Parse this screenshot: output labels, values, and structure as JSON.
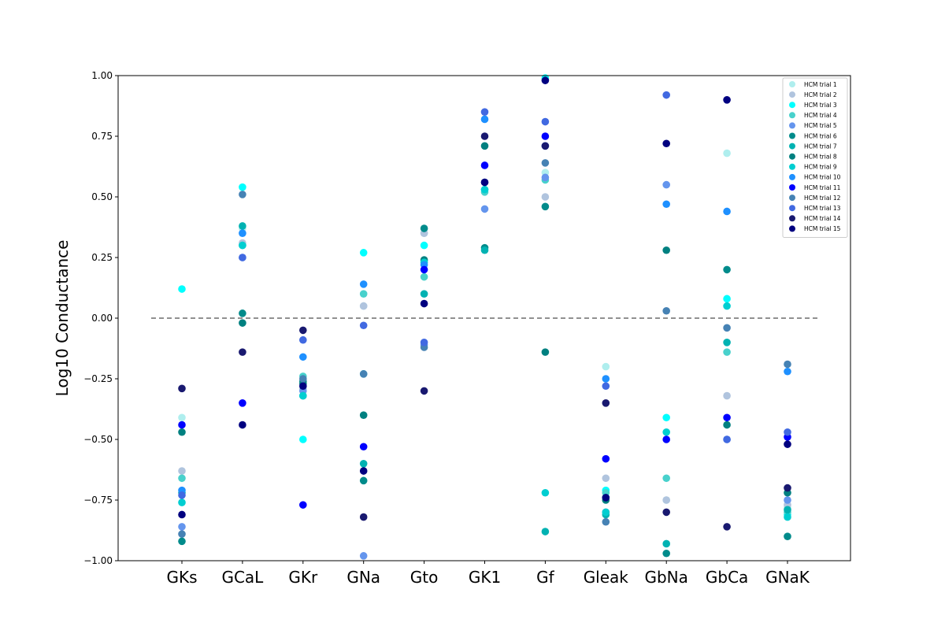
{
  "chart_data": {
    "type": "scatter",
    "title": "",
    "xlabel": "",
    "ylabel": "Log10 Conductance",
    "ylim": [
      -1.0,
      1.0
    ],
    "yticks": [
      -1.0,
      -0.75,
      -0.5,
      -0.25,
      0.0,
      0.25,
      0.5,
      0.75,
      1.0
    ],
    "ytick_labels": [
      "−1.00",
      "−0.75",
      "−0.50",
      "−0.25",
      "0.00",
      "0.25",
      "0.50",
      "0.75",
      "1.00"
    ],
    "categories": [
      "GKs",
      "GCaL",
      "GKr",
      "GNa",
      "Gto",
      "GK1",
      "Gf",
      "Gleak",
      "GbNa",
      "GbCa",
      "GNaK"
    ],
    "reference_line": {
      "y": 0.0,
      "style": "dashed",
      "color": "#808080"
    },
    "legend_position": "top-right",
    "grid": false,
    "series": [
      {
        "name": "HCM trial 1",
        "color": "#AFEEEE",
        "values": [
          -0.41,
          0.37,
          -0.3,
          0.05,
          0.35,
          0.53,
          0.6,
          -0.2,
          -0.75,
          0.68,
          -0.78
        ]
      },
      {
        "name": "HCM trial 2",
        "color": "#B0C4DE",
        "values": [
          -0.63,
          0.31,
          -0.29,
          0.05,
          0.35,
          0.56,
          0.5,
          -0.66,
          -0.75,
          -0.32,
          -0.77
        ]
      },
      {
        "name": "HCM trial 3",
        "color": "#00FFFF",
        "values": [
          0.12,
          0.54,
          -0.5,
          0.27,
          0.3,
          0.53,
          0.99,
          -0.71,
          -0.41,
          0.08,
          -0.81
        ]
      },
      {
        "name": "HCM trial 4",
        "color": "#48D1CC",
        "values": [
          -0.66,
          0.3,
          -0.24,
          0.1,
          0.17,
          0.52,
          0.57,
          -0.72,
          -0.66,
          -0.14,
          -0.8
        ]
      },
      {
        "name": "HCM trial 5",
        "color": "#6495ED",
        "values": [
          -0.86,
          0.25,
          -0.3,
          -0.98,
          -0.11,
          0.45,
          0.58,
          -0.8,
          0.55,
          -0.5,
          -0.75
        ]
      },
      {
        "name": "HCM trial 6",
        "color": "#008B8B",
        "values": [
          -0.92,
          0.02,
          -0.26,
          -0.67,
          0.37,
          0.29,
          0.46,
          -0.74,
          -0.97,
          0.2,
          -0.9
        ]
      },
      {
        "name": "HCM trial 7",
        "color": "#00B2B2",
        "values": [
          -0.72,
          0.38,
          -0.32,
          -0.6,
          0.1,
          0.28,
          -0.88,
          -0.81,
          -0.93,
          -0.1,
          -0.79
        ]
      },
      {
        "name": "HCM trial 8",
        "color": "#008080",
        "values": [
          -0.47,
          -0.02,
          -0.27,
          -0.4,
          0.24,
          0.71,
          -0.14,
          -0.75,
          0.28,
          -0.44,
          -0.72
        ]
      },
      {
        "name": "HCM trial 9",
        "color": "#00CED1",
        "values": [
          -0.76,
          0.3,
          -0.32,
          -0.23,
          0.23,
          0.53,
          -0.72,
          -0.8,
          -0.47,
          0.05,
          -0.82
        ]
      },
      {
        "name": "HCM trial 10",
        "color": "#1E90FF",
        "values": [
          -0.71,
          0.35,
          -0.16,
          0.14,
          0.22,
          0.82,
          0.71,
          -0.25,
          0.47,
          0.44,
          -0.22
        ]
      },
      {
        "name": "HCM trial 11",
        "color": "#0000FF",
        "values": [
          -0.44,
          -0.35,
          -0.77,
          -0.53,
          0.2,
          0.63,
          0.75,
          -0.58,
          -0.5,
          -0.41,
          -0.49
        ]
      },
      {
        "name": "HCM trial 12",
        "color": "#4682B4",
        "values": [
          -0.89,
          0.51,
          -0.25,
          -0.23,
          -0.12,
          0.56,
          0.64,
          -0.84,
          0.03,
          -0.04,
          -0.19
        ]
      },
      {
        "name": "HCM trial 13",
        "color": "#4169E1",
        "values": [
          -0.73,
          0.25,
          -0.09,
          -0.03,
          -0.1,
          0.85,
          0.81,
          -0.28,
          0.92,
          -0.5,
          -0.47
        ]
      },
      {
        "name": "HCM trial 14",
        "color": "#191970",
        "values": [
          -0.29,
          -0.14,
          -0.05,
          -0.82,
          -0.3,
          0.75,
          0.71,
          -0.35,
          -0.8,
          -0.86,
          -0.7
        ]
      },
      {
        "name": "HCM trial 15",
        "color": "#000080",
        "values": [
          -0.81,
          -0.44,
          -0.28,
          -0.63,
          0.06,
          0.56,
          0.98,
          -0.74,
          0.72,
          0.9,
          -0.52
        ]
      }
    ]
  }
}
